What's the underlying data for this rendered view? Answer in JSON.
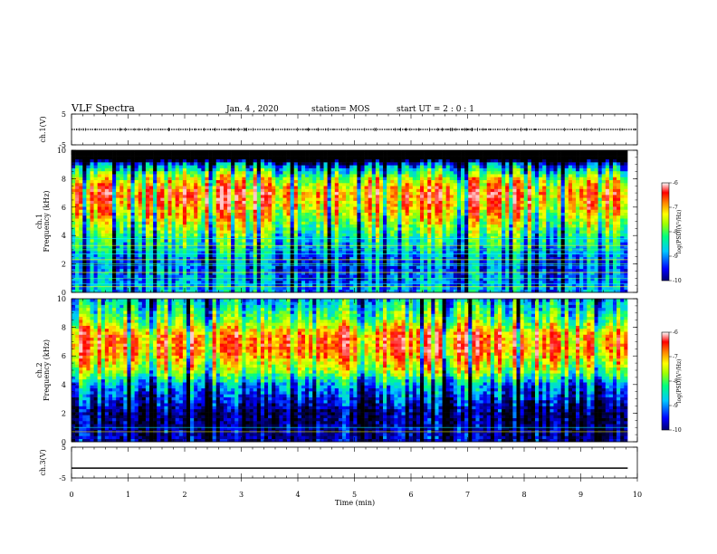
{
  "header": {
    "title": "VLF Spectra",
    "date": "Jan. 4 , 2020",
    "station": "station= MOS",
    "start_ut": "start UT =  2 : 0 : 1"
  },
  "colors": {
    "frame": "#000000",
    "background": "#ffffff",
    "colormap": [
      "#00007f",
      "#0000ff",
      "#00bfff",
      "#00ff80",
      "#80ff00",
      "#ffff00",
      "#ff8000",
      "#ff0000",
      "#ffffff"
    ]
  },
  "chart_data": [
    {
      "type": "line",
      "panel": "ch1-waveform",
      "ylabel": "ch.1(V)",
      "ylim": [
        -5,
        5
      ],
      "y_ticks": [
        "5",
        "-5"
      ],
      "x": [
        0,
        10
      ],
      "series": [
        {
          "values": [
            0,
            0
          ]
        }
      ],
      "style": "dotted"
    },
    {
      "type": "heatmap",
      "panel": "ch1-spectrogram",
      "ylabel": "ch.1\nFrequency (kHz)",
      "ylim": [
        0,
        10
      ],
      "y_ticks": [
        "0",
        "2",
        "4",
        "6",
        "8",
        "10"
      ],
      "xlim": [
        0,
        9.83
      ],
      "z_range": [
        -10,
        -6
      ],
      "colorbar": {
        "label": "log(PSD)(V²/Hz)",
        "ticks": [
          "-6",
          "-7",
          "-8",
          "-9",
          "-10"
        ]
      },
      "band_profile_khz": [
        {
          "f": 0.0,
          "level": -8.6
        },
        {
          "f": 2.0,
          "level": -8.9
        },
        {
          "f": 4.0,
          "level": -8.0
        },
        {
          "f": 6.0,
          "level": -6.9
        },
        {
          "f": 7.0,
          "level": -6.6
        },
        {
          "f": 8.0,
          "level": -7.4
        },
        {
          "f": 9.0,
          "level": -8.8
        },
        {
          "f": 9.3,
          "level": -10.0
        }
      ],
      "cutoff_khz": 9.3,
      "interference_lines_khz": [
        0.4,
        0.6,
        1.0,
        1.4,
        1.9,
        2.0,
        2.3,
        2.7,
        3.0,
        3.3,
        3.8
      ]
    },
    {
      "type": "heatmap",
      "panel": "ch2-spectrogram",
      "ylabel": "ch.2\nFrequency (kHz)",
      "ylim": [
        0,
        10
      ],
      "y_ticks": [
        "0",
        "2",
        "4",
        "6",
        "8",
        "10"
      ],
      "xlim": [
        0,
        9.83
      ],
      "z_range": [
        -10,
        -6
      ],
      "colorbar": {
        "label": "log(PSD)(V²/Hz)",
        "ticks": [
          "-6",
          "-7",
          "-8",
          "-9",
          "-10"
        ]
      },
      "band_profile_khz": [
        {
          "f": 0.0,
          "level": -9.4
        },
        {
          "f": 2.0,
          "level": -9.6
        },
        {
          "f": 4.0,
          "level": -8.7
        },
        {
          "f": 5.0,
          "level": -7.6
        },
        {
          "f": 6.5,
          "level": -6.7
        },
        {
          "f": 7.5,
          "level": -6.8
        },
        {
          "f": 8.5,
          "level": -7.8
        },
        {
          "f": 10.0,
          "level": -8.6
        }
      ],
      "interference_lines_khz": [
        0.7,
        1.0
      ]
    },
    {
      "type": "line",
      "panel": "ch3-waveform",
      "ylabel": "ch.3(V)",
      "xlabel": "Time (min)",
      "ylim": [
        -5,
        5
      ],
      "y_ticks": [
        "5",
        "-5"
      ],
      "x_ticks": [
        "0",
        "1",
        "2",
        "3",
        "4",
        "5",
        "6",
        "7",
        "8",
        "9",
        "10"
      ],
      "xlim": [
        0,
        10
      ],
      "x": [
        0,
        9.83
      ],
      "series": [
        {
          "values": [
            -1.8,
            -1.8
          ]
        }
      ],
      "style": "solid"
    }
  ]
}
